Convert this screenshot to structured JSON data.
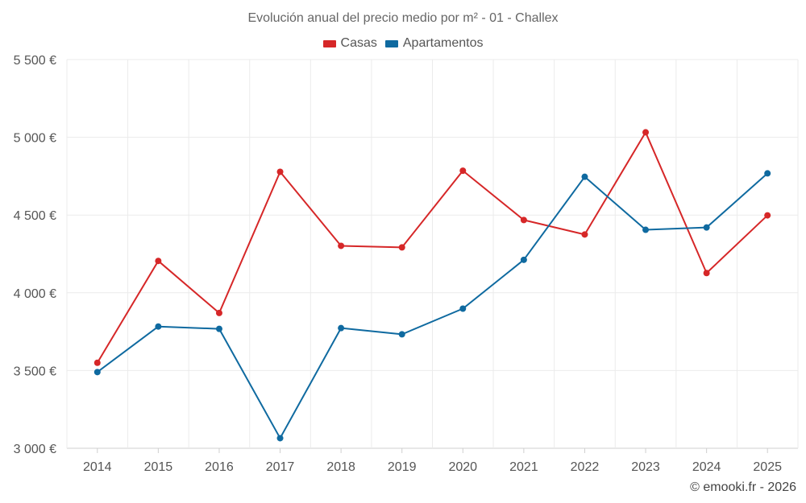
{
  "chart_data": {
    "type": "line",
    "title": "Evolución anual del precio medio por m² - 01 - Challex",
    "categories": [
      "2014",
      "2015",
      "2016",
      "2017",
      "2018",
      "2019",
      "2020",
      "2021",
      "2022",
      "2023",
      "2024",
      "2025"
    ],
    "series": [
      {
        "name": "Casas",
        "color": "#d62728",
        "values": [
          3550,
          4205,
          3870,
          4778,
          4302,
          4292,
          4785,
          4468,
          4375,
          5032,
          4127,
          4498
        ]
      },
      {
        "name": "Apartamentos",
        "color": "#0f6aa0",
        "values": [
          3490,
          3783,
          3768,
          3065,
          3773,
          3733,
          3898,
          4212,
          4746,
          4405,
          4420,
          4768
        ]
      }
    ],
    "ylim": [
      3000,
      5500
    ],
    "yticks": [
      3000,
      3500,
      4000,
      4500,
      5000,
      5500
    ],
    "ytick_labels": [
      "3 000 €",
      "3 500 €",
      "4 000 €",
      "4 500 €",
      "5 000 €",
      "5 500 €"
    ],
    "xlabel": "",
    "ylabel": "",
    "grid": true,
    "legend_position": "top-center"
  },
  "footer": {
    "copyright": "© emooki.fr - 2026"
  }
}
